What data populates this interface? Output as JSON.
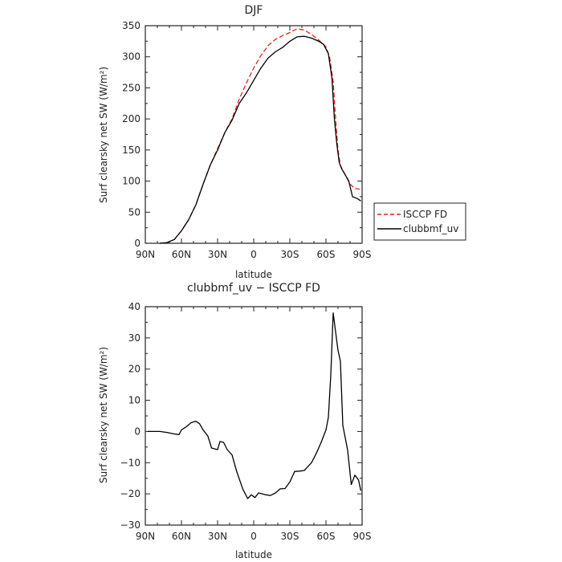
{
  "chart_data": [
    {
      "type": "line",
      "title": "DJF",
      "xlabel": "latitude",
      "ylabel": "Surf clearsky net SW (W/m²)",
      "xlim": [
        -90,
        90
      ],
      "ylim": [
        0,
        350
      ],
      "x_ticks": [
        -90,
        -60,
        -30,
        0,
        30,
        60,
        90
      ],
      "x_tick_labels": [
        "90N",
        "60N",
        "30N",
        "0",
        "30S",
        "60S",
        "90S"
      ],
      "y_ticks": [
        0,
        50,
        100,
        150,
        200,
        250,
        300,
        350
      ],
      "y_tick_labels": [
        "0",
        "50",
        "100",
        "150",
        "200",
        "250",
        "300",
        "350"
      ],
      "legend_position": "right, outside plot",
      "series": [
        {
          "name": "ISCCP FD",
          "color": "#e8221f",
          "dash": "dashed",
          "points": [
            [
              -78,
              0
            ],
            [
              -72,
              1
            ],
            [
              -66,
              6
            ],
            [
              -60,
              20
            ],
            [
              -54,
              38
            ],
            [
              -48,
              62
            ],
            [
              -42,
              95
            ],
            [
              -36,
              126
            ],
            [
              -30,
              152
            ],
            [
              -24,
              178
            ],
            [
              -18,
              200
            ],
            [
              -12,
              232
            ],
            [
              -6,
              258
            ],
            [
              0,
              282
            ],
            [
              6,
              302
            ],
            [
              12,
              318
            ],
            [
              18,
              328
            ],
            [
              24,
              334
            ],
            [
              30,
              339
            ],
            [
              36,
              345
            ],
            [
              42,
              343
            ],
            [
              48,
              336
            ],
            [
              54,
              327
            ],
            [
              60,
              316
            ],
            [
              63,
              300
            ],
            [
              66,
              260
            ],
            [
              68,
              200
            ],
            [
              70,
              150
            ],
            [
              72,
              125
            ],
            [
              76,
              110
            ],
            [
              80,
              95
            ],
            [
              84,
              88
            ],
            [
              88,
              87
            ]
          ]
        },
        {
          "name": "clubbmf_uv",
          "color": "#000000",
          "dash": "solid",
          "points": [
            [
              -78,
              0
            ],
            [
              -72,
              1
            ],
            [
              -66,
              6
            ],
            [
              -60,
              20
            ],
            [
              -54,
              38
            ],
            [
              -48,
              62
            ],
            [
              -42,
              95
            ],
            [
              -36,
              126
            ],
            [
              -30,
              150
            ],
            [
              -24,
              178
            ],
            [
              -18,
              198
            ],
            [
              -12,
              225
            ],
            [
              -6,
              242
            ],
            [
              0,
              262
            ],
            [
              6,
              282
            ],
            [
              12,
              298
            ],
            [
              18,
              308
            ],
            [
              24,
              315
            ],
            [
              30,
              325
            ],
            [
              36,
              332
            ],
            [
              42,
              333
            ],
            [
              48,
              330
            ],
            [
              54,
              325
            ],
            [
              58,
              320
            ],
            [
              62,
              305
            ],
            [
              65,
              265
            ],
            [
              67,
              200
            ],
            [
              69,
              160
            ],
            [
              71,
              130
            ],
            [
              73,
              120
            ],
            [
              76,
              110
            ],
            [
              79,
              100
            ],
            [
              82,
              75
            ],
            [
              86,
              72
            ],
            [
              89,
              68
            ]
          ]
        }
      ]
    },
    {
      "type": "line",
      "title": "clubbmf_uv − ISCCP FD",
      "xlabel": "latitude",
      "ylabel": "Surf clearsky net SW (W/m²)",
      "xlim": [
        -90,
        90
      ],
      "ylim": [
        -30,
        40
      ],
      "x_ticks": [
        -90,
        -60,
        -30,
        0,
        30,
        60,
        90
      ],
      "x_tick_labels": [
        "90N",
        "60N",
        "30N",
        "0",
        "30S",
        "60S",
        "90S"
      ],
      "y_ticks": [
        -30,
        -20,
        -10,
        0,
        10,
        20,
        30,
        40
      ],
      "y_tick_labels": [
        "−30",
        "−20",
        "−10",
        "0",
        "10",
        "20",
        "30",
        "40"
      ],
      "series": [
        {
          "color": "#000000",
          "dash": "solid",
          "points": [
            [
              -88,
              0
            ],
            [
              -78,
              0
            ],
            [
              -72,
              -0.3
            ],
            [
              -66,
              -0.8
            ],
            [
              -62,
              -1
            ],
            [
              -60,
              0.5
            ],
            [
              -56,
              1.5
            ],
            [
              -52,
              2.8
            ],
            [
              -48,
              3.3
            ],
            [
              -45,
              2.5
            ],
            [
              -42,
              0.5
            ],
            [
              -38,
              -1.5
            ],
            [
              -35,
              -5.3
            ],
            [
              -30,
              -5.8
            ],
            [
              -28,
              -3.2
            ],
            [
              -25,
              -3.5
            ],
            [
              -22,
              -5.8
            ],
            [
              -18,
              -7.5
            ],
            [
              -14,
              -13
            ],
            [
              -9,
              -18.5
            ],
            [
              -5,
              -21.5
            ],
            [
              -2,
              -20.3
            ],
            [
              1,
              -21.2
            ],
            [
              4,
              -19.7
            ],
            [
              10,
              -20.3
            ],
            [
              14,
              -20.5
            ],
            [
              18,
              -19.7
            ],
            [
              22,
              -18.4
            ],
            [
              26,
              -18.3
            ],
            [
              30,
              -16.2
            ],
            [
              34,
              -12.8
            ],
            [
              38,
              -12.7
            ],
            [
              42,
              -12.5
            ],
            [
              48,
              -10
            ],
            [
              52,
              -7
            ],
            [
              56,
              -3.5
            ],
            [
              60,
              0.5
            ],
            [
              62,
              4.5
            ],
            [
              64,
              18
            ],
            [
              66,
              38
            ],
            [
              68,
              32
            ],
            [
              70,
              26
            ],
            [
              72,
              22.5
            ],
            [
              74,
              2
            ],
            [
              78,
              -6
            ],
            [
              81,
              -17
            ],
            [
              84,
              -14
            ],
            [
              87,
              -15.5
            ],
            [
              89,
              -19
            ]
          ]
        }
      ]
    }
  ],
  "legend": {
    "items": [
      {
        "label": "ISCCP FD",
        "color": "#e8221f",
        "dash": "dashed"
      },
      {
        "label": "clubbmf_uv",
        "color": "#000000",
        "dash": "solid"
      }
    ]
  }
}
